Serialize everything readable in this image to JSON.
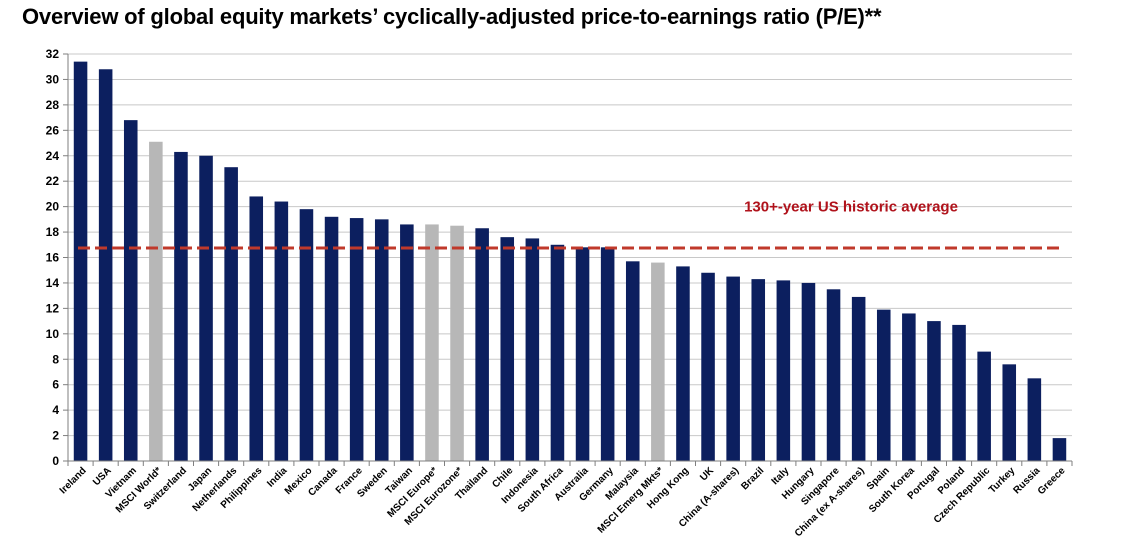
{
  "chart_data": {
    "type": "bar",
    "title": "Overview of global equity markets’ cyclically-adjusted price-to-earnings ratio (P/E)**",
    "xlabel": "",
    "ylabel": "",
    "ylim": [
      0,
      32
    ],
    "yticks": [
      0,
      2,
      4,
      6,
      8,
      10,
      12,
      14,
      16,
      18,
      20,
      22,
      24,
      26,
      28,
      30,
      32
    ],
    "grid": true,
    "categories": [
      "Ireland",
      "USA",
      "Vietnam",
      "MSCI World*",
      "Switzerland",
      "Japan",
      "Netherlands",
      "Philippines",
      "India",
      "Mexico",
      "Canada",
      "France",
      "Sweden",
      "Taiwan",
      "MSCI Europe*",
      "MSCI Eurozone*",
      "Thailand",
      "Chile",
      "Indonesia",
      "South Africa",
      "Australia",
      "Germany",
      "Malaysia",
      "MSCI Emerg Mkts*",
      "Hong Kong",
      "UK",
      "China (A-shares)",
      "Brazil",
      "Italy",
      "Hungary",
      "Singapore",
      "China (ex A-shares)",
      "Spain",
      "South Korea",
      "Portugal",
      "Poland",
      "Czech Republic",
      "Turkey",
      "Russia",
      "Greece"
    ],
    "values": [
      31.4,
      30.8,
      26.8,
      25.1,
      24.3,
      24.0,
      23.1,
      20.8,
      20.4,
      19.8,
      19.2,
      19.1,
      19.0,
      18.6,
      18.6,
      18.5,
      18.3,
      17.6,
      17.5,
      17.0,
      16.8,
      16.8,
      15.7,
      15.6,
      15.3,
      14.8,
      14.5,
      14.3,
      14.2,
      14.0,
      13.5,
      12.9,
      11.9,
      11.6,
      11.0,
      10.7,
      8.6,
      7.6,
      6.5,
      1.8
    ],
    "highlight": [
      false,
      false,
      false,
      true,
      false,
      false,
      false,
      false,
      false,
      false,
      false,
      false,
      false,
      false,
      true,
      true,
      false,
      false,
      false,
      false,
      false,
      false,
      false,
      true,
      false,
      false,
      false,
      false,
      false,
      false,
      false,
      false,
      false,
      false,
      false,
      false,
      false,
      false,
      false,
      false
    ],
    "reference_line": {
      "value": 16.75,
      "label": "130+-year US historic average",
      "style": "dashed"
    },
    "colors": {
      "bar": "#0c1f5f",
      "bar_highlight": "#b7b7b7",
      "reference": "#c0392b",
      "reference_label": "#b0121b",
      "grid": "#c8c8c8",
      "axis": "#7f7f7f"
    }
  }
}
